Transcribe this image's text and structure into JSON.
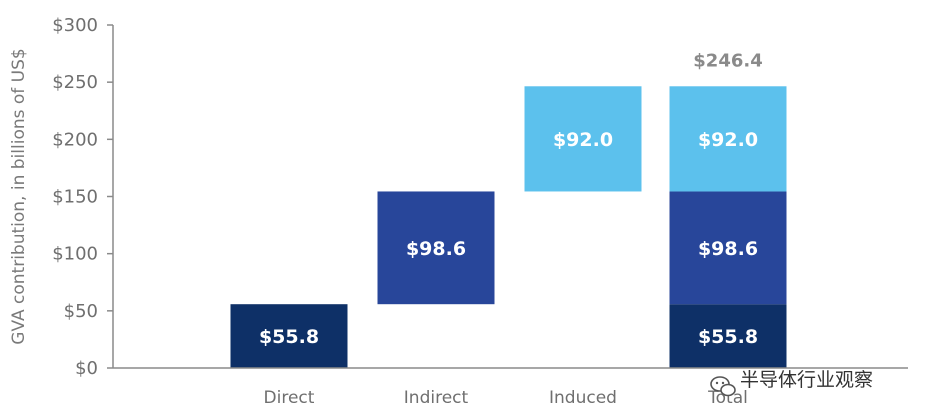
{
  "chart_data": {
    "type": "bar",
    "subtype": "waterfall",
    "categories": [
      "Direct",
      "Indirect",
      "Induced",
      "Total"
    ],
    "ylabel": "GVA contribution, in billions of US$",
    "ylim": [
      0,
      300
    ],
    "yticks": [
      0,
      50,
      100,
      150,
      200,
      250,
      300
    ],
    "ytick_labels": [
      "$0",
      "$50",
      "$100",
      "$150",
      "$200",
      "$250",
      "$300"
    ],
    "grid": false,
    "colors": {
      "Direct": "#0e3067",
      "Indirect": "#28469a",
      "Induced": "#5cc1ed"
    },
    "segments": [
      {
        "category": "Direct",
        "component": "Direct",
        "base": 0,
        "value": 55.8,
        "label": "$55.8"
      },
      {
        "category": "Indirect",
        "component": "Indirect",
        "base": 55.8,
        "value": 98.6,
        "label": "$98.6"
      },
      {
        "category": "Induced",
        "component": "Induced",
        "base": 154.4,
        "value": 92.0,
        "label": "$92.0"
      },
      {
        "category": "Total",
        "component": "Direct",
        "base": 0,
        "value": 55.8,
        "label": "$55.8"
      },
      {
        "category": "Total",
        "component": "Indirect",
        "base": 55.8,
        "value": 98.6,
        "label": "$98.6"
      },
      {
        "category": "Total",
        "component": "Induced",
        "base": 154.4,
        "value": 92.0,
        "label": "$92.0"
      }
    ],
    "total": {
      "value": 246.4,
      "label": "$246.4"
    }
  },
  "watermark": {
    "text": "半导体行业观察",
    "icon": "wechat-icon"
  }
}
